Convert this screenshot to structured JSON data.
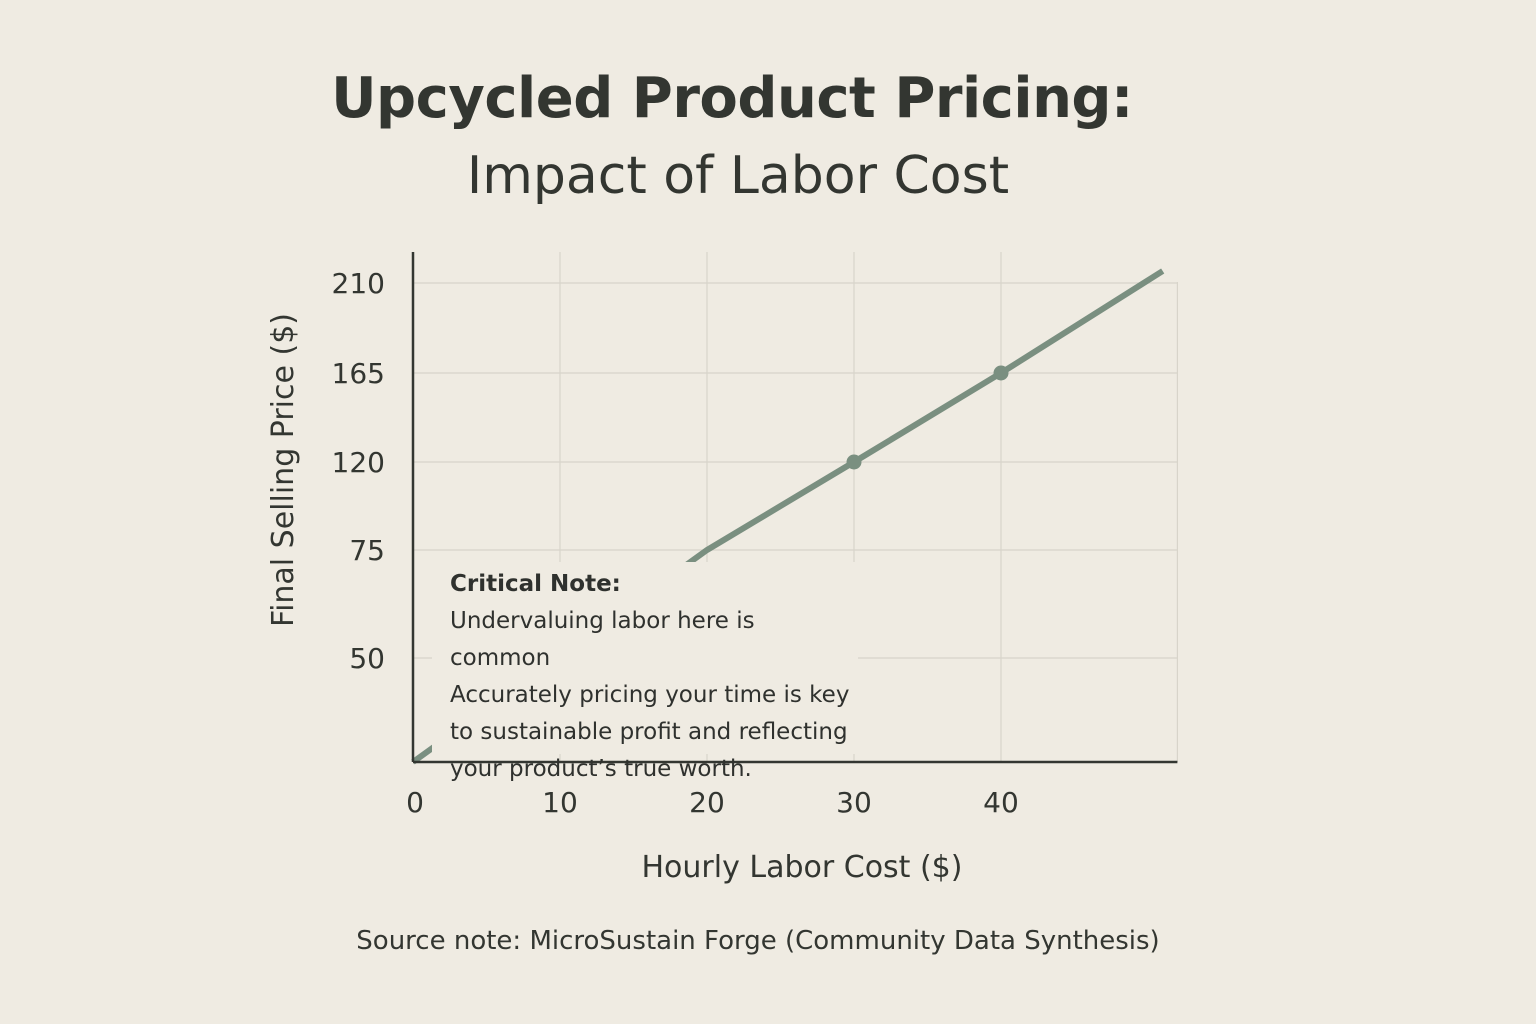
{
  "chart_data": {
    "type": "line",
    "title": "Upcycled Product Pricing:",
    "subtitle": "Impact of Labor Cost",
    "xlabel": "Hourly Labor Cost ($)",
    "ylabel": "Final Selling Price ($)",
    "x_ticks": [
      0,
      10,
      20,
      30,
      40
    ],
    "y_ticks": [
      50,
      75,
      120,
      165,
      210
    ],
    "xlim": [
      0,
      52
    ],
    "grid": true,
    "series": [
      {
        "x": [
          0,
          20,
          30,
          40,
          51
        ],
        "y": [
          0,
          75,
          120,
          165,
          216
        ],
        "markers_at": [
          30,
          40
        ],
        "color": "#7a8f80"
      }
    ],
    "annotation": {
      "heading": "Critical Note:",
      "lines": [
        "Undervaluing labor here is common",
        "Accurately pricing your time is key",
        "to sustainable profit and reflecting",
        "your product’s true worth."
      ]
    },
    "source": "Source note: MicroSustain Forge (Community Data Synthesis)"
  },
  "colors": {
    "background": "#efebe2",
    "text": "#333631",
    "grid": "#d8d4ca",
    "line": "#7a8f80"
  }
}
